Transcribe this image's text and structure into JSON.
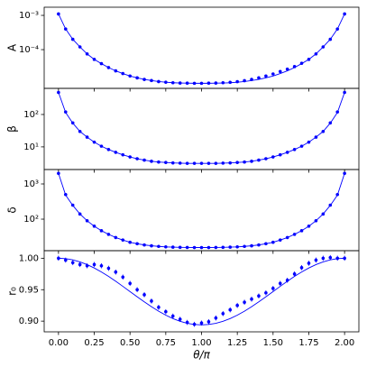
{
  "chart_data": [
    {
      "type": "line",
      "ylabel": "A",
      "yscale": "log",
      "ylim": [
        7.4e-06,
        0.00173
      ],
      "xlim": [
        -0.1,
        2.1
      ],
      "yticks": [
        {
          "value": 0.0001,
          "label": "10⁻⁴"
        },
        {
          "value": 0.001,
          "label": "10⁻³"
        }
      ],
      "x": [
        0,
        0.05,
        0.1,
        0.15,
        0.2,
        0.25,
        0.3,
        0.35,
        0.4,
        0.45,
        0.5,
        0.55,
        0.6,
        0.65,
        0.7,
        0.75,
        0.8,
        0.85,
        0.9,
        0.95,
        1.0,
        1.05,
        1.1,
        1.15,
        1.2,
        1.25,
        1.3,
        1.35,
        1.4,
        1.45,
        1.5,
        1.55,
        1.6,
        1.65,
        1.7,
        1.75,
        1.8,
        1.85,
        1.9,
        1.95,
        2.0
      ],
      "series": [
        {
          "style": "points",
          "color": "#0000ff",
          "values": [
            0.0011,
            0.0004,
            0.0002,
            0.00012,
            7.5e-05,
            5.2e-05,
            3.9e-05,
            3e-05,
            2.4e-05,
            2e-05,
            1.7e-05,
            1.5e-05,
            1.35e-05,
            1.25e-05,
            1.17e-05,
            1.12e-05,
            1.08e-05,
            1.06e-05,
            1.05e-05,
            1.04e-05,
            1.04e-05,
            1.05e-05,
            1.06e-05,
            1.08e-05,
            1.11e-05,
            1.16e-05,
            1.24e-05,
            1.35e-05,
            1.5e-05,
            1.7e-05,
            1.95e-05,
            2.3e-05,
            2.7e-05,
            3.2e-05,
            4e-05,
            5.2e-05,
            7.5e-05,
            0.00012,
            0.0002,
            0.0004,
            0.0011
          ]
        },
        {
          "style": "line",
          "color": "#0000ff",
          "values": [
            0.0011,
            0.0004,
            0.0002,
            0.00012,
            7.5e-05,
            5.2e-05,
            3.9e-05,
            3e-05,
            2.4e-05,
            2e-05,
            1.7e-05,
            1.5e-05,
            1.35e-05,
            1.25e-05,
            1.17e-05,
            1.12e-05,
            1.08e-05,
            1.06e-05,
            1.05e-05,
            1.04e-05,
            1.04e-05,
            1.04e-05,
            1.05e-05,
            1.06e-05,
            1.08e-05,
            1.12e-05,
            1.17e-05,
            1.25e-05,
            1.35e-05,
            1.5e-05,
            1.7e-05,
            2e-05,
            2.4e-05,
            3e-05,
            3.9e-05,
            5.2e-05,
            7.5e-05,
            0.00012,
            0.0002,
            0.0004,
            0.0011
          ]
        }
      ]
    },
    {
      "type": "line",
      "ylabel": "β",
      "yscale": "log",
      "ylim": [
        2.0,
        640
      ],
      "xlim": [
        -0.1,
        2.1
      ],
      "yticks": [
        {
          "value": 10,
          "label": "10¹"
        },
        {
          "value": 100,
          "label": "10²"
        }
      ],
      "x": [
        0,
        0.05,
        0.1,
        0.15,
        0.2,
        0.25,
        0.3,
        0.35,
        0.4,
        0.45,
        0.5,
        0.55,
        0.6,
        0.65,
        0.7,
        0.75,
        0.8,
        0.85,
        0.9,
        0.95,
        1.0,
        1.05,
        1.1,
        1.15,
        1.2,
        1.25,
        1.3,
        1.35,
        1.4,
        1.45,
        1.5,
        1.55,
        1.6,
        1.65,
        1.7,
        1.75,
        1.8,
        1.85,
        1.9,
        1.95,
        2.0
      ],
      "series": [
        {
          "style": "points",
          "color": "#0000ff",
          "values": [
            480,
            120,
            55,
            30,
            20,
            14,
            10.5,
            8.3,
            6.8,
            5.7,
            4.9,
            4.3,
            3.9,
            3.6,
            3.4,
            3.3,
            3.2,
            3.15,
            3.1,
            3.1,
            3.1,
            3.1,
            3.1,
            3.15,
            3.2,
            3.3,
            3.4,
            3.6,
            3.9,
            4.3,
            4.9,
            5.7,
            6.8,
            8.3,
            10.5,
            14,
            20,
            30,
            55,
            120,
            480
          ]
        },
        {
          "style": "line",
          "color": "#0000ff",
          "values": [
            480,
            115,
            54,
            30,
            20,
            14,
            10.5,
            8.3,
            6.8,
            5.7,
            4.9,
            4.3,
            3.9,
            3.6,
            3.4,
            3.3,
            3.2,
            3.15,
            3.1,
            3.1,
            3.1,
            3.1,
            3.1,
            3.15,
            3.2,
            3.3,
            3.4,
            3.6,
            3.9,
            4.3,
            4.9,
            5.7,
            6.8,
            8.3,
            10.5,
            14,
            20,
            30,
            54,
            115,
            480
          ]
        }
      ]
    },
    {
      "type": "line",
      "ylabel": "δ",
      "yscale": "log",
      "ylim": [
        12.7,
        2570
      ],
      "xlim": [
        -0.1,
        2.1
      ],
      "yticks": [
        {
          "value": 100,
          "label": "10²"
        },
        {
          "value": 1000,
          "label": "10³"
        }
      ],
      "x": [
        0,
        0.05,
        0.1,
        0.15,
        0.2,
        0.25,
        0.3,
        0.35,
        0.4,
        0.45,
        0.5,
        0.55,
        0.6,
        0.65,
        0.7,
        0.75,
        0.8,
        0.85,
        0.9,
        0.95,
        1.0,
        1.05,
        1.1,
        1.15,
        1.2,
        1.25,
        1.3,
        1.35,
        1.4,
        1.45,
        1.5,
        1.55,
        1.6,
        1.65,
        1.7,
        1.75,
        1.8,
        1.85,
        1.9,
        1.95,
        2.0
      ],
      "series": [
        {
          "style": "points",
          "color": "#0000ff",
          "values": [
            2000,
            500,
            250,
            140,
            90,
            63,
            47,
            37,
            30,
            25.5,
            22,
            20,
            18.5,
            17.5,
            16.8,
            16.3,
            16,
            15.8,
            15.7,
            15.6,
            15.6,
            15.6,
            15.7,
            15.8,
            16,
            16.3,
            16.8,
            17.5,
            18.5,
            20,
            22,
            25.5,
            30,
            37,
            47,
            63,
            90,
            140,
            250,
            500,
            2000
          ]
        },
        {
          "style": "line",
          "color": "#0000ff",
          "values": [
            2000,
            480,
            245,
            140,
            90,
            63,
            47,
            37,
            30,
            25.5,
            22,
            20,
            18.5,
            17.5,
            16.8,
            16.3,
            16,
            15.8,
            15.7,
            15.6,
            15.6,
            15.6,
            15.7,
            15.8,
            16,
            16.3,
            16.8,
            17.5,
            18.5,
            20,
            22,
            25.5,
            30,
            37,
            47,
            63,
            90,
            140,
            245,
            480,
            2000
          ]
        }
      ]
    },
    {
      "type": "line",
      "ylabel": "r₀",
      "xlabel": "θ/π",
      "ylim": [
        0.883,
        1.012
      ],
      "xlim": [
        -0.1,
        2.1
      ],
      "yticks": [
        {
          "value": 0.9,
          "label": "0.90"
        },
        {
          "value": 0.95,
          "label": "0.95"
        },
        {
          "value": 1.0,
          "label": "1.00"
        }
      ],
      "xticks": [
        {
          "value": 0,
          "label": "0.00"
        },
        {
          "value": 0.25,
          "label": "0.25"
        },
        {
          "value": 0.5,
          "label": "0.50"
        },
        {
          "value": 0.75,
          "label": "0.75"
        },
        {
          "value": 1.0,
          "label": "1.00"
        },
        {
          "value": 1.25,
          "label": "1.25"
        },
        {
          "value": 1.5,
          "label": "1.50"
        },
        {
          "value": 1.75,
          "label": "1.75"
        },
        {
          "value": 2.0,
          "label": "2.00"
        }
      ],
      "x": [
        0,
        0.05,
        0.1,
        0.15,
        0.2,
        0.25,
        0.3,
        0.35,
        0.4,
        0.45,
        0.5,
        0.55,
        0.6,
        0.65,
        0.7,
        0.75,
        0.8,
        0.85,
        0.9,
        0.95,
        1.0,
        1.05,
        1.1,
        1.15,
        1.2,
        1.25,
        1.3,
        1.35,
        1.4,
        1.45,
        1.5,
        1.55,
        1.6,
        1.65,
        1.7,
        1.75,
        1.8,
        1.85,
        1.9,
        1.95,
        2.0
      ],
      "series": [
        {
          "style": "points",
          "color": "#0000ff",
          "error": 0.004,
          "values": [
            1.0,
            0.997,
            0.993,
            0.99,
            0.988,
            0.99,
            0.988,
            0.984,
            0.978,
            0.97,
            0.96,
            0.95,
            0.942,
            0.932,
            0.922,
            0.915,
            0.908,
            0.903,
            0.898,
            0.895,
            0.897,
            0.899,
            0.905,
            0.912,
            0.918,
            0.925,
            0.93,
            0.935,
            0.94,
            0.945,
            0.952,
            0.96,
            0.965,
            0.975,
            0.985,
            0.992,
            0.997,
            1.0,
            1.001,
            1.0,
            1.0
          ]
        },
        {
          "style": "line",
          "color": "#0000ff",
          "values": [
            1.0,
            0.9993,
            0.9974,
            0.9942,
            0.9899,
            0.9845,
            0.9782,
            0.9711,
            0.9634,
            0.9553,
            0.947,
            0.9387,
            0.9306,
            0.9229,
            0.9158,
            0.9095,
            0.9041,
            0.8998,
            0.8966,
            0.8947,
            0.894,
            0.8947,
            0.8966,
            0.8998,
            0.9041,
            0.9095,
            0.9158,
            0.9229,
            0.9306,
            0.9387,
            0.947,
            0.9553,
            0.9634,
            0.9711,
            0.9782,
            0.9845,
            0.9899,
            0.9942,
            0.9974,
            0.9993,
            1.0
          ]
        }
      ]
    }
  ]
}
